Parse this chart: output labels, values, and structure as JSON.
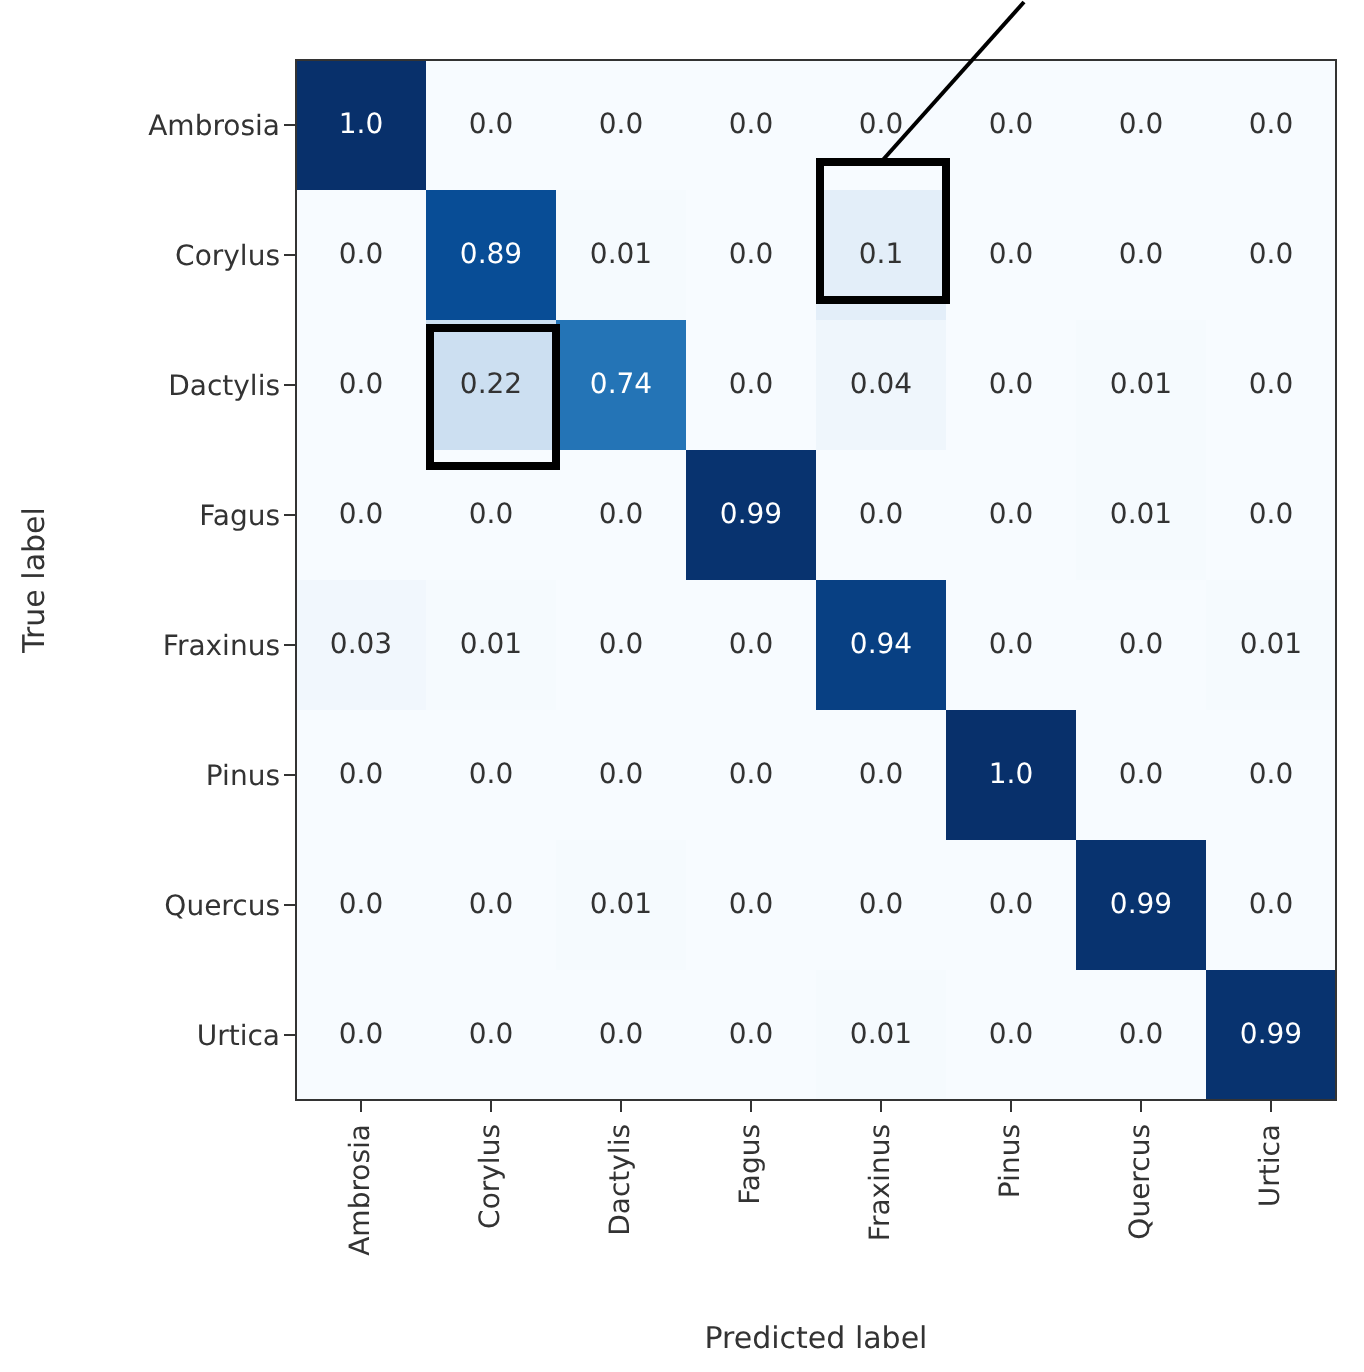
{
  "chart_data": {
    "type": "heatmap",
    "xlabel": "Predicted label",
    "ylabel": "True label",
    "categories": [
      "Ambrosia",
      "Corylus",
      "Dactylis",
      "Fagus",
      "Fraxinus",
      "Pinus",
      "Quercus",
      "Urtica"
    ],
    "y_categories": [
      "Ambrosia",
      "Corylus",
      "Dactylis",
      "Fagus",
      "Fraxinus",
      "Pinus",
      "Quercus",
      "Urtica"
    ],
    "cells": [
      [
        1.0,
        0.0,
        0.0,
        0.0,
        0.0,
        0.0,
        0.0,
        0.0
      ],
      [
        0.0,
        0.89,
        0.01,
        0.0,
        0.1,
        0.0,
        0.0,
        0.0
      ],
      [
        0.0,
        0.22,
        0.74,
        0.0,
        0.04,
        0.0,
        0.01,
        0.0
      ],
      [
        0.0,
        0.0,
        0.0,
        0.99,
        0.0,
        0.0,
        0.01,
        0.0
      ],
      [
        0.03,
        0.01,
        0.0,
        0.0,
        0.94,
        0.0,
        0.0,
        0.01
      ],
      [
        0.0,
        0.0,
        0.0,
        0.0,
        0.0,
        1.0,
        0.0,
        0.0
      ],
      [
        0.0,
        0.0,
        0.01,
        0.0,
        0.0,
        0.0,
        0.99,
        0.0
      ],
      [
        0.0,
        0.0,
        0.0,
        0.0,
        0.01,
        0.0,
        0.0,
        0.99
      ]
    ],
    "cell_labels": [
      [
        "1.0",
        "0.0",
        "0.0",
        "0.0",
        "0.0",
        "0.0",
        "0.0",
        "0.0"
      ],
      [
        "0.0",
        "0.89",
        "0.01",
        "0.0",
        "0.1",
        "0.0",
        "0.0",
        "0.0"
      ],
      [
        "0.0",
        "0.22",
        "0.74",
        "0.0",
        "0.04",
        "0.0",
        "0.01",
        "0.0"
      ],
      [
        "0.0",
        "0.0",
        "0.0",
        "0.99",
        "0.0",
        "0.0",
        "0.01",
        "0.0"
      ],
      [
        "0.03",
        "0.01",
        "0.0",
        "0.0",
        "0.94",
        "0.0",
        "0.0",
        "0.01"
      ],
      [
        "0.0",
        "0.0",
        "0.0",
        "0.0",
        "0.0",
        "1.0",
        "0.0",
        "0.0"
      ],
      [
        "0.0",
        "0.0",
        "0.01",
        "0.0",
        "0.0",
        "0.0",
        "0.99",
        "0.0"
      ],
      [
        "0.0",
        "0.0",
        "0.0",
        "0.0",
        "0.01",
        "0.0",
        "0.0",
        "0.99"
      ]
    ]
  }
}
